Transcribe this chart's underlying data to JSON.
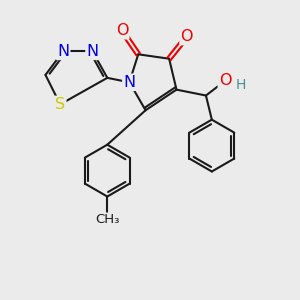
{
  "bg_color": "#ebebeb",
  "bond_color": "#1a1a1a",
  "bond_width": 1.5,
  "atom_colors": {
    "N": "#0000ee",
    "O": "#ee0000",
    "S": "#cccc00",
    "H": "#4a9090",
    "C": "#1a1a1a"
  },
  "font_size_atom": 11.5,
  "font_size_h": 10
}
